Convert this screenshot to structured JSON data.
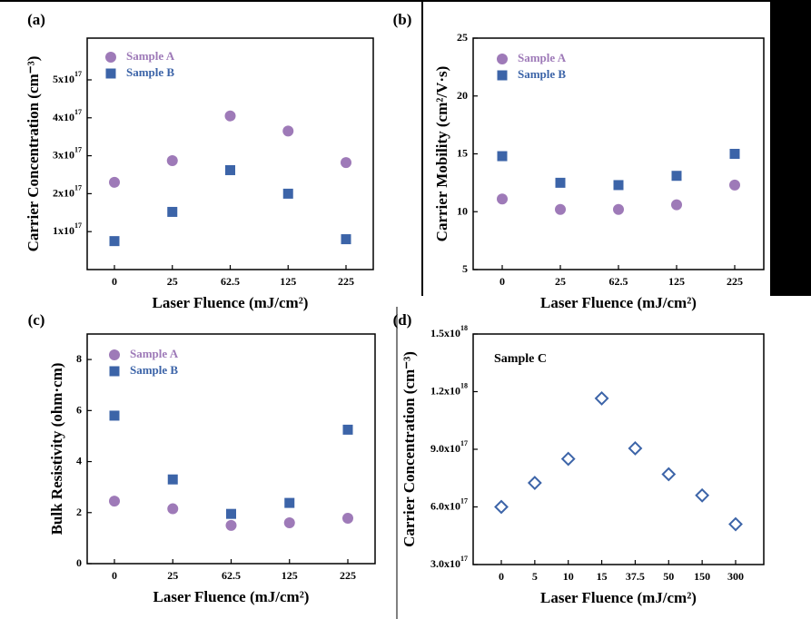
{
  "colors": {
    "sample_a": "#9e7ab8",
    "sample_b": "#3c64a8",
    "sample_c": "#3c64a8",
    "axis": "#000000",
    "dark_block": "#000000"
  },
  "chart_data": [
    {
      "panel": "(a)",
      "type": "scatter",
      "categories": [
        "0",
        "25",
        "62.5",
        "125",
        "225"
      ],
      "xlabel": "Laser Fluence (mJ/cm²)",
      "ylabel": "Carrier Concentration (cm⁻³)",
      "ylim": [
        0,
        6.1e+17
      ],
      "yticks": [
        {
          "value": 1e+17,
          "label": "1x10",
          "exp": "17"
        },
        {
          "value": 2e+17,
          "label": "2x10",
          "exp": "17"
        },
        {
          "value": 3e+17,
          "label": "3x10",
          "exp": "17"
        },
        {
          "value": 4e+17,
          "label": "4x10",
          "exp": "17"
        },
        {
          "value": 5e+17,
          "label": "5x10",
          "exp": "17"
        }
      ],
      "legend_position": "top-left",
      "series": [
        {
          "name": "Sample A",
          "marker": "circle",
          "values": [
            2.3e+17,
            2.87e+17,
            4.05e+17,
            3.65e+17,
            2.82e+17
          ]
        },
        {
          "name": "Sample B",
          "marker": "square",
          "values": [
            7.5e+16,
            1.52e+17,
            2.62e+17,
            2e+17,
            8e+16
          ]
        }
      ]
    },
    {
      "panel": "(b)",
      "type": "scatter",
      "categories": [
        "0",
        "25",
        "62.5",
        "125",
        "225"
      ],
      "xlabel": "Laser Fluence (mJ/cm²)",
      "ylabel": "Carrier Mobility (cm²/V·s)",
      "ylim": [
        5,
        25
      ],
      "yticks": [
        {
          "value": 5,
          "label": "5"
        },
        {
          "value": 10,
          "label": "10"
        },
        {
          "value": 15,
          "label": "15"
        },
        {
          "value": 20,
          "label": "20"
        },
        {
          "value": 25,
          "label": "25"
        }
      ],
      "legend_position": "top-left",
      "series": [
        {
          "name": "Sample A",
          "marker": "circle",
          "values": [
            11.1,
            10.2,
            10.2,
            10.6,
            12.3
          ]
        },
        {
          "name": "Sample B",
          "marker": "square",
          "values": [
            14.8,
            12.5,
            12.3,
            13.1,
            15.0
          ]
        }
      ]
    },
    {
      "panel": "(c)",
      "type": "scatter",
      "categories": [
        "0",
        "25",
        "62.5",
        "125",
        "225"
      ],
      "xlabel": "Laser Fluence (mJ/cm²)",
      "ylabel": "Bulk Resistivity (ohm·cm)",
      "ylim": [
        0,
        9
      ],
      "yticks": [
        {
          "value": 0,
          "label": "0"
        },
        {
          "value": 2,
          "label": "2"
        },
        {
          "value": 4,
          "label": "4"
        },
        {
          "value": 6,
          "label": "6"
        },
        {
          "value": 8,
          "label": "8"
        }
      ],
      "legend_position": "top-left",
      "series": [
        {
          "name": "Sample A",
          "marker": "circle",
          "values": [
            2.45,
            2.15,
            1.5,
            1.6,
            1.78
          ]
        },
        {
          "name": "Sample B",
          "marker": "square",
          "values": [
            5.8,
            3.3,
            1.95,
            2.38,
            5.25
          ]
        }
      ]
    },
    {
      "panel": "(d)",
      "type": "scatter",
      "categories": [
        "0",
        "5",
        "10",
        "15",
        "37.5",
        "50",
        "150",
        "300"
      ],
      "xlabel": "Laser Fluence (mJ/cm²)",
      "ylabel": "Carrier Concentration (cm⁻³)",
      "ylim": [
        3e+17,
        1.5e+18
      ],
      "yticks": [
        {
          "value": 3e+17,
          "label": "3.0x10",
          "exp": "17"
        },
        {
          "value": 6e+17,
          "label": "6.0x10",
          "exp": "17"
        },
        {
          "value": 9e+17,
          "label": "9.0x10",
          "exp": "17"
        },
        {
          "value": 1.2e+18,
          "label": "1.2x10",
          "exp": "18"
        },
        {
          "value": 1.5e+18,
          "label": "1.5x10",
          "exp": "18"
        }
      ],
      "annotation": "Sample C",
      "series": [
        {
          "name": "Sample C",
          "marker": "diamond-open",
          "values": [
            6e+17,
            7.25e+17,
            8.5e+17,
            1.165e+18,
            9.05e+17,
            7.7e+17,
            6.6e+17,
            5.1e+17
          ]
        }
      ]
    }
  ]
}
